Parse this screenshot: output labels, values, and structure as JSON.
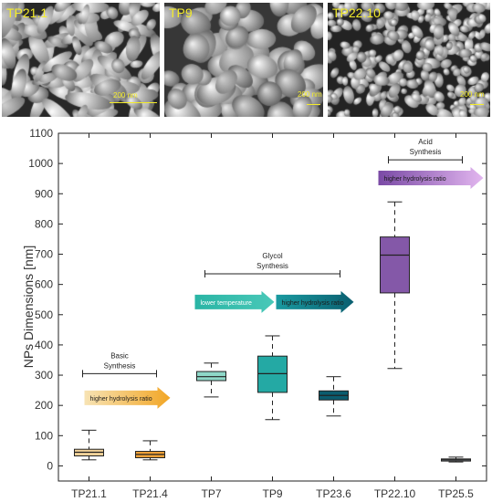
{
  "micrographs": [
    {
      "label": "TP21.1",
      "scale": "200 nm"
    },
    {
      "label": "TP9",
      "scale": "200 nm"
    },
    {
      "label": "TP22.10",
      "scale": "200 nm"
    }
  ],
  "chart_data": {
    "type": "box",
    "ylabel": "NPs Dimensions [nm]",
    "ylim": [
      -50,
      1100
    ],
    "yticks": [
      0,
      100,
      200,
      300,
      400,
      500,
      600,
      700,
      800,
      900,
      1000,
      1100
    ],
    "grid": false,
    "categories": [
      "TP21.1",
      "TP21.4",
      "TP7",
      "TP9",
      "TP23.6",
      "TP22.10",
      "TP25.5"
    ],
    "boxes": [
      {
        "category": "TP21.1",
        "min": 20,
        "q1": 33,
        "median": 45,
        "q3": 55,
        "max": 118,
        "color": "#f3d39a"
      },
      {
        "category": "TP21.4",
        "min": 20,
        "q1": 27,
        "median": 38,
        "q3": 48,
        "max": 83,
        "color": "#f2a338"
      },
      {
        "category": "TP7",
        "min": 228,
        "q1": 282,
        "median": 295,
        "q3": 312,
        "max": 340,
        "color": "#8ed8c8"
      },
      {
        "category": "TP9",
        "min": 153,
        "q1": 243,
        "median": 305,
        "q3": 363,
        "max": 430,
        "color": "#24a9a4"
      },
      {
        "category": "TP23.6",
        "min": 165,
        "q1": 218,
        "median": 233,
        "q3": 248,
        "max": 295,
        "color": "#0b5c6e"
      },
      {
        "category": "TP22.10",
        "min": 322,
        "q1": 572,
        "median": 697,
        "q3": 757,
        "max": 873,
        "color": "#8458a8"
      },
      {
        "category": "TP25.5",
        "min": 13,
        "q1": 16,
        "median": 20,
        "q3": 23,
        "max": 29,
        "color": "#9aa3a8"
      }
    ],
    "annotations": {
      "groups": [
        {
          "line1": "Basic",
          "line2": "Synthesis",
          "x_from": "TP21.1",
          "x_to": "TP21.4",
          "y": 305
        },
        {
          "line1": "Glycol",
          "line2": "Synthesis",
          "x_from": "TP7",
          "x_to": "TP23.6",
          "y": 635
        },
        {
          "line1": "Acid",
          "line2": "Synthesis",
          "x_from": "TP22.10",
          "x_to": "TP25.5",
          "y": 1012
        }
      ],
      "arrows": [
        {
          "text": "higher hydrolysis ratio",
          "y": 225,
          "color_from": "#f7e3b4",
          "color_to": "#f2a625"
        },
        {
          "text": "lower temperature",
          "y": 542,
          "color_from": "#2ab5a5",
          "color_to": "#49c8b8"
        },
        {
          "text": "higher hydrolysis ratio",
          "y": 542,
          "color_from": "#1a9aa0",
          "color_to": "#0a5f70"
        },
        {
          "text": "higher hydrolysis ratio",
          "y": 952,
          "color_from": "#7a4aa5",
          "color_to": "#e2b6ef"
        }
      ]
    }
  }
}
